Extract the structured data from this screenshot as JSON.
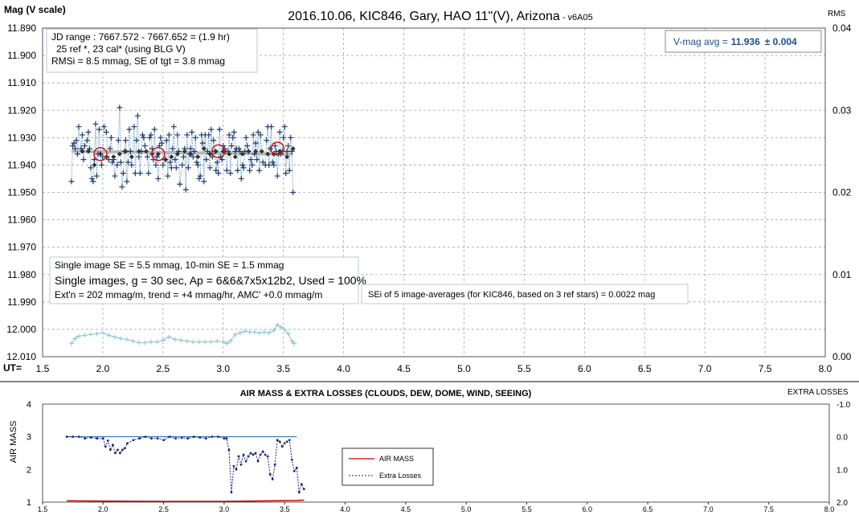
{
  "chart_data": [
    {
      "type": "scatter",
      "title": "2016.10.06, KIC846, Gary, HAO 11\"(V), Arizona",
      "title_suffix": "- v6A05",
      "ylabel": "Mag (V scale)",
      "y2label": "RMS",
      "xlabel": "UT=",
      "xlim": [
        1.5,
        8.0
      ],
      "ylim": [
        11.89,
        12.01
      ],
      "y_inverted": true,
      "y2lim": [
        0.0,
        0.04
      ],
      "grid": true,
      "x_ticks": [
        "1.5",
        "2.0",
        "2.5",
        "3.0",
        "3.5",
        "4.0",
        "4.5",
        "5.0",
        "5.5",
        "6.0",
        "6.5",
        "7.0",
        "7.5",
        "8.0"
      ],
      "y_ticks": [
        "11.890",
        "11.900",
        "11.910",
        "11.920",
        "11.930",
        "11.940",
        "11.950",
        "11.960",
        "11.970",
        "11.980",
        "11.990",
        "12.000",
        "12.010"
      ],
      "y2_ticks": [
        "0.04",
        "0.03",
        "0.02",
        "0.01",
        "0.00"
      ],
      "info_box_1": [
        "JD range : 7667.572 - 7667.652 = (1.9 hr)",
        "25 ref *, 23 cal* (using BLG V)",
        "RMSi = 8.5 mmag, SE of tgt = 3.8 mmag"
      ],
      "vmag_box": {
        "label": "V-mag avg =",
        "value": "11.936",
        "pm": "± 0.004"
      },
      "info_box_2": [
        "Single image SE = 5.5 mmag, 10-min SE = 1.5 mmag",
        "Single images, g = 30 sec, Ap = 6&6&7x5x12b2, Used = 100%",
        "Ext'n = 202 mmag/m, trend = +4 mmag/hr, AMC' +0.0 mmag/m"
      ],
      "sei_note": "SEi of 5 image-averages (for KIC846, based on 3 ref stars) = 0.0022 mag",
      "series": [
        {
          "role": "single images",
          "x": [
            1.74,
            1.75,
            1.76,
            1.77,
            1.78,
            1.79,
            1.8,
            1.82,
            1.83,
            1.84,
            1.85,
            1.87,
            1.88,
            1.89,
            1.9,
            1.91,
            1.92,
            1.93,
            1.94,
            1.95,
            1.96,
            1.97,
            1.98,
            1.99,
            2.0,
            2.01,
            2.03,
            2.05,
            2.06,
            2.07,
            2.08,
            2.09,
            2.1,
            2.12,
            2.13,
            2.14,
            2.15,
            2.16,
            2.17,
            2.18,
            2.19,
            2.2,
            2.21,
            2.22,
            2.23,
            2.24,
            2.26,
            2.27,
            2.28,
            2.29,
            2.3,
            2.31,
            2.32,
            2.33,
            2.34,
            2.35,
            2.37,
            2.38,
            2.39,
            2.4,
            2.41,
            2.42,
            2.43,
            2.44,
            2.45,
            2.46,
            2.47,
            2.48,
            2.49,
            2.5,
            2.52,
            2.53,
            2.54,
            2.55,
            2.56,
            2.57,
            2.58,
            2.59,
            2.6,
            2.61,
            2.62,
            2.63,
            2.64,
            2.66,
            2.67,
            2.68,
            2.69,
            2.7,
            2.71,
            2.72,
            2.73,
            2.74,
            2.75,
            2.76,
            2.77,
            2.78,
            2.79,
            2.8,
            2.81,
            2.82,
            2.83,
            2.84,
            2.85,
            2.86,
            2.87,
            2.88,
            2.89,
            2.9,
            2.91,
            2.92,
            2.93,
            2.94,
            2.95,
            2.96,
            2.97,
            2.98,
            2.99,
            3.0,
            3.01,
            3.02,
            3.03,
            3.04,
            3.05,
            3.06,
            3.07,
            3.08,
            3.09,
            3.1,
            3.11,
            3.12,
            3.13,
            3.14,
            3.15,
            3.16,
            3.17,
            3.18,
            3.19,
            3.2,
            3.21,
            3.22,
            3.23,
            3.24,
            3.25,
            3.26,
            3.27,
            3.28,
            3.29,
            3.3,
            3.31,
            3.33,
            3.35,
            3.36,
            3.37,
            3.38,
            3.39,
            3.4,
            3.41,
            3.42,
            3.43,
            3.44,
            3.45,
            3.46,
            3.47,
            3.48,
            3.49,
            3.5,
            3.51,
            3.52,
            3.53,
            3.54,
            3.55,
            3.56,
            3.57,
            3.58
          ],
          "y": [
            11.946,
            11.933,
            11.932,
            11.934,
            11.931,
            11.936,
            11.926,
            11.934,
            11.929,
            11.938,
            11.933,
            11.931,
            11.928,
            11.934,
            11.941,
            11.945,
            11.946,
            11.938,
            11.925,
            11.944,
            11.936,
            11.927,
            11.936,
            11.94,
            11.937,
            11.926,
            11.928,
            11.938,
            11.934,
            11.93,
            11.939,
            11.938,
            11.944,
            11.94,
            11.931,
            11.919,
            11.939,
            11.948,
            11.943,
            11.935,
            11.931,
            11.946,
            11.939,
            11.927,
            11.935,
            11.94,
            11.926,
            11.943,
            11.931,
            11.922,
            11.937,
            11.943,
            11.935,
            11.929,
            11.93,
            11.933,
            11.937,
            11.943,
            11.93,
            11.929,
            11.934,
            11.938,
            11.927,
            11.94,
            11.937,
            11.945,
            11.933,
            11.93,
            11.932,
            11.94,
            11.938,
            11.931,
            11.944,
            11.929,
            11.939,
            11.941,
            11.934,
            11.926,
            11.938,
            11.941,
            11.929,
            11.935,
            11.947,
            11.94,
            11.937,
            11.934,
            11.949,
            11.929,
            11.941,
            11.936,
            11.934,
            11.928,
            11.937,
            11.935,
            11.93,
            11.939,
            11.94,
            11.945,
            11.944,
            11.929,
            11.932,
            11.946,
            11.929,
            11.938,
            11.935,
            11.929,
            11.941,
            11.927,
            11.937,
            11.931,
            11.935,
            11.942,
            11.939,
            11.943,
            11.927,
            11.937,
            11.938,
            11.933,
            11.934,
            11.935,
            11.942,
            11.935,
            11.929,
            11.943,
            11.933,
            11.93,
            11.928,
            11.935,
            11.934,
            11.942,
            11.934,
            11.935,
            11.945,
            11.94,
            11.941,
            11.935,
            11.93,
            11.933,
            11.935,
            11.942,
            11.938,
            11.94,
            11.929,
            11.936,
            11.932,
            11.938,
            11.928,
            11.942,
            11.929,
            11.939,
            11.94,
            11.931,
            11.926,
            11.94,
            11.934,
            11.926,
            11.939,
            11.94,
            11.933,
            11.935,
            11.944,
            11.936,
            11.928,
            11.936,
            11.935,
            11.93,
            11.926,
            11.943,
            11.935,
            11.933,
            11.942,
            11.93,
            11.935,
            11.95
          ]
        },
        {
          "role": "5-image averages",
          "x": [
            1.83,
            1.88,
            1.93,
            1.98,
            2.03,
            2.09,
            2.14,
            2.19,
            2.24,
            2.3,
            2.36,
            2.41,
            2.46,
            2.52,
            2.57,
            2.62,
            2.68,
            2.73,
            2.79,
            2.84,
            2.89,
            2.94,
            3.0,
            3.05,
            3.1,
            3.16,
            3.21,
            3.27,
            3.32,
            3.37,
            3.42,
            3.47,
            3.53,
            3.58
          ],
          "y": [
            11.935,
            11.935,
            11.94,
            11.936,
            11.937,
            11.937,
            11.936,
            11.935,
            11.937,
            11.935,
            11.935,
            11.936,
            11.936,
            11.938,
            11.937,
            11.936,
            11.935,
            11.936,
            11.937,
            11.934,
            11.936,
            11.935,
            11.935,
            11.936,
            11.937,
            11.936,
            11.935,
            11.935,
            11.935,
            11.936,
            11.936,
            11.935,
            11.937,
            11.934
          ]
        },
        {
          "role": "model fit",
          "x": [
            1.74,
            3.58
          ],
          "y": [
            11.935,
            11.936
          ]
        },
        {
          "role": "circled averages",
          "x": [
            1.98,
            2.46,
            2.96,
            3.45
          ],
          "y": [
            11.936,
            11.936,
            11.935,
            11.934
          ]
        },
        {
          "role": "RMS (right axis)",
          "x": [
            1.74,
            1.77,
            1.8,
            1.85,
            1.9,
            1.95,
            2.0,
            2.05,
            2.1,
            2.15,
            2.2,
            2.25,
            2.3,
            2.35,
            2.4,
            2.45,
            2.5,
            2.55,
            2.6,
            2.65,
            2.7,
            2.75,
            2.8,
            2.85,
            2.9,
            2.95,
            3.0,
            3.03,
            3.06,
            3.1,
            3.14,
            3.18,
            3.22,
            3.26,
            3.3,
            3.34,
            3.38,
            3.42,
            3.45,
            3.48,
            3.51,
            3.54,
            3.57,
            3.59
          ],
          "y": [
            0.0016,
            0.0022,
            0.0025,
            0.0026,
            0.0027,
            0.0028,
            0.0029,
            0.0026,
            0.0024,
            0.0022,
            0.0021,
            0.0019,
            0.0017,
            0.0017,
            0.0018,
            0.0018,
            0.002,
            0.0024,
            0.0021,
            0.002,
            0.0019,
            0.0018,
            0.0018,
            0.0018,
            0.0018,
            0.0019,
            0.0018,
            0.0016,
            0.0019,
            0.0027,
            0.0029,
            0.0031,
            0.003,
            0.003,
            0.0029,
            0.003,
            0.0029,
            0.0032,
            0.0039,
            0.0036,
            0.0033,
            0.0028,
            0.0019,
            0.0016
          ]
        }
      ]
    },
    {
      "type": "line",
      "title": "AIR MASS & EXTRA LOSSES (CLOUDS, DEW, DOME, WIND, SEEING)",
      "ylabel": "AIR MASS",
      "y2label": "EXTRA LOSSES",
      "xlim": [
        1.5,
        8.0
      ],
      "ylim": [
        1,
        4
      ],
      "y2lim": [
        -1.0,
        2.0
      ],
      "x_ticks": [
        "1.5",
        "2.0",
        "2.5",
        "3.0",
        "3.5",
        "4.0",
        "4.5",
        "5.0",
        "5.5",
        "6.0",
        "6.5",
        "7.0",
        "7.5",
        "8.0"
      ],
      "y_ticks": [
        "4",
        "3",
        "2",
        "1"
      ],
      "y2_ticks": [
        "-1.0",
        "0.0",
        "1.0",
        "2.0"
      ],
      "legend": [
        "AIR MASS",
        "Extra Losses"
      ],
      "legend_position": "middle-left",
      "series": [
        {
          "name": "AIR MASS",
          "x": [
            1.7,
            2.0,
            2.5,
            3.0,
            3.2,
            3.4,
            3.6,
            3.66
          ],
          "y": [
            1.04,
            1.03,
            1.02,
            1.02,
            1.03,
            1.04,
            1.05,
            1.06
          ]
        },
        {
          "name": "Extra Losses",
          "x": [
            1.7,
            1.75,
            1.8,
            1.85,
            1.9,
            1.95,
            2.0,
            2.02,
            2.04,
            2.06,
            2.08,
            2.1,
            2.12,
            2.14,
            2.16,
            2.18,
            2.2,
            2.25,
            2.3,
            2.35,
            2.4,
            2.45,
            2.5,
            2.55,
            2.6,
            2.65,
            2.7,
            2.75,
            2.8,
            2.85,
            2.9,
            2.95,
            3.0,
            3.02,
            3.04,
            3.06,
            3.08,
            3.1,
            3.12,
            3.14,
            3.16,
            3.18,
            3.2,
            3.22,
            3.24,
            3.26,
            3.28,
            3.3,
            3.32,
            3.34,
            3.36,
            3.38,
            3.4,
            3.42,
            3.44,
            3.46,
            3.48,
            3.5,
            3.52,
            3.54,
            3.56,
            3.58,
            3.6,
            3.62,
            3.64,
            3.66
          ],
          "y": [
            0.0,
            0.0,
            0.0,
            0.05,
            0.02,
            0.05,
            0.05,
            0.3,
            0.12,
            0.4,
            0.25,
            0.5,
            0.4,
            0.5,
            0.4,
            0.35,
            0.2,
            0.1,
            0.05,
            0.0,
            0.05,
            0.05,
            0.1,
            0.0,
            0.05,
            0.03,
            0.05,
            0.0,
            0.02,
            0.05,
            0.0,
            0.0,
            0.05,
            0.05,
            0.4,
            1.7,
            0.9,
            1.0,
            0.6,
            0.85,
            0.55,
            0.75,
            0.6,
            0.5,
            0.55,
            0.5,
            0.75,
            0.55,
            0.45,
            0.55,
            0.6,
            1.15,
            1.3,
            0.85,
            0.1,
            0.15,
            0.3,
            0.2,
            0.15,
            0.1,
            0.7,
            1.05,
            0.95,
            1.7,
            1.45,
            1.6
          ]
        }
      ]
    }
  ]
}
